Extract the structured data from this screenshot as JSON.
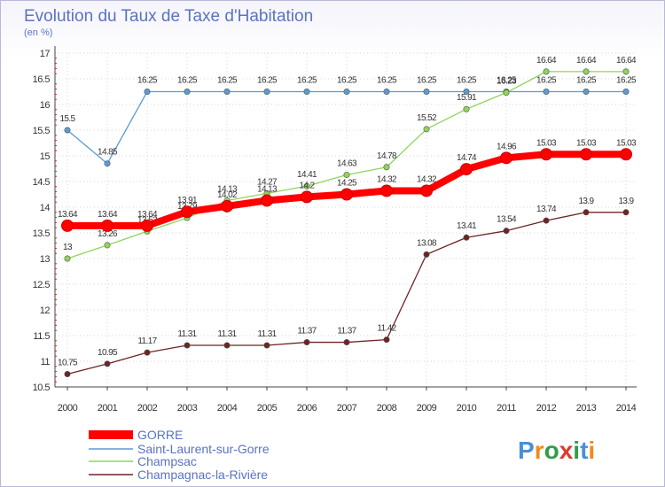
{
  "chart_data": {
    "type": "line",
    "title": "Evolution du Taux de Taxe d'Habitation",
    "ylabel": "(en %)",
    "xlabel": "",
    "ylim": [
      10.5,
      17
    ],
    "yticks": [
      "10.5",
      "11",
      "11.5",
      "12",
      "12.5",
      "13",
      "13.5",
      "14",
      "14.5",
      "15",
      "15.5",
      "16",
      "16.5",
      "17"
    ],
    "categories": [
      "2000",
      "2001",
      "2002",
      "2003",
      "2004",
      "2005",
      "2006",
      "2007",
      "2008",
      "2009",
      "2010",
      "2011",
      "2012",
      "2013",
      "2014"
    ],
    "series": [
      {
        "name": "GORRE",
        "color": "#ff0000",
        "values": [
          13.64,
          13.64,
          13.64,
          13.91,
          14.02,
          14.13,
          14.2,
          14.25,
          14.32,
          14.32,
          14.74,
          14.96,
          15.03,
          15.03,
          15.03
        ],
        "labels": [
          "13.64",
          "13.64",
          "13.64",
          "13.91",
          "14.02",
          "14.13",
          "14.2",
          "14.25",
          "14.32",
          "14.32",
          "14.74",
          "14.96",
          "15.03",
          "15.03",
          "15.03"
        ]
      },
      {
        "name": "Saint-Laurent-sur-Gorre",
        "color": "#5b9bd5",
        "values": [
          15.5,
          14.85,
          16.25,
          16.25,
          16.25,
          16.25,
          16.25,
          16.25,
          16.25,
          16.25,
          16.25,
          16.25,
          16.25,
          16.25,
          16.25
        ],
        "labels": [
          "15.5",
          "14.85",
          "16.25",
          "16.25",
          "16.25",
          "16.25",
          "16.25",
          "16.25",
          "16.25",
          "16.25",
          "16.25",
          "16.25",
          "16.25",
          "16.25",
          "16.25"
        ]
      },
      {
        "name": "Champsac",
        "color": "#8fd45c",
        "values": [
          13,
          13.26,
          13.53,
          13.79,
          14.13,
          14.27,
          14.41,
          14.63,
          14.78,
          15.52,
          15.91,
          16.23,
          16.64,
          16.64,
          16.64
        ],
        "labels": [
          "13",
          "13.26",
          "13.53",
          "13.79",
          "14.13",
          "14.27",
          "14.41",
          "14.63",
          "14.78",
          "15.52",
          "15.91",
          "16.23",
          "16.64",
          "16.64",
          "16.64"
        ]
      },
      {
        "name": "Champagnac-la-Rivière",
        "color": "#6e2424",
        "values": [
          10.75,
          10.95,
          11.17,
          11.31,
          11.31,
          11.31,
          11.37,
          11.37,
          11.42,
          13.08,
          13.41,
          13.54,
          13.74,
          13.9,
          13.9
        ],
        "labels": [
          "10.75",
          "10.95",
          "11.17",
          "11.31",
          "11.31",
          "11.31",
          "11.37",
          "11.37",
          "11.42",
          "13.08",
          "13.41",
          "13.54",
          "13.74",
          "13.9",
          "13.9"
        ]
      }
    ],
    "legend_position": "bottom-left"
  },
  "logo": {
    "text": "Proxiti"
  }
}
